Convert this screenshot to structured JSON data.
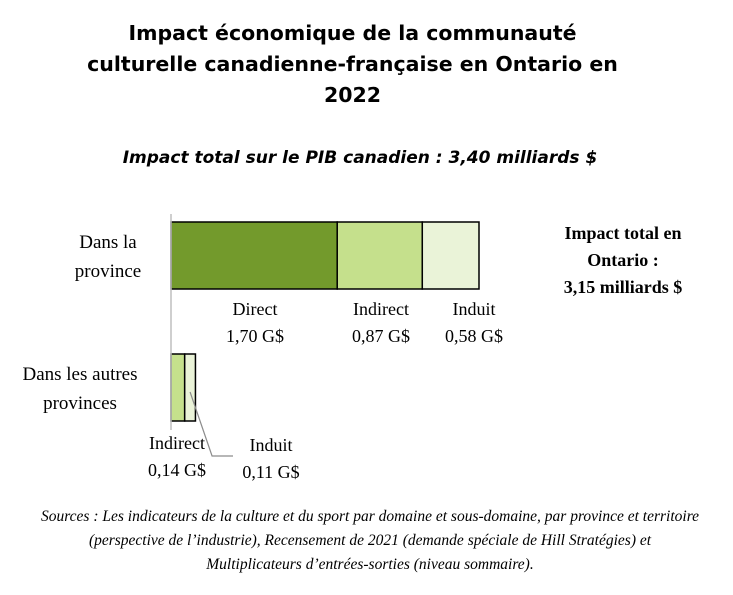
{
  "title": "Impact économique de la communauté culturelle canadienne-française en Ontario en 2022",
  "subtitle": "Impact total sur le PIB canadien : 3,40 milliards $",
  "total_box": {
    "line1": "Impact total en",
    "line2": "Ontario :",
    "line3": "3,15 milliards $"
  },
  "source": "Sources : Les indicateurs de la culture et du sport par domaine et sous-domaine, par province et territoire (perspective de l’industrie), Recensement de 2021 (demande spéciale de Hill Stratégies) et Multiplicateurs d’entrées-sorties (niveau sommaire).",
  "colors": {
    "direct": "#739a2c",
    "indirect": "#c5e08c",
    "induit": "#eaf3d8",
    "outline": "#000000",
    "axis": "#bfbfbf",
    "leader": "#8c8c8c"
  },
  "chart_data": {
    "type": "bar",
    "orientation": "horizontal",
    "stacked": true,
    "unit": "G$",
    "categories": [
      "Dans la province",
      "Dans les autres provinces"
    ],
    "category_lines": [
      [
        "Dans la",
        "province"
      ],
      [
        "Dans les autres",
        "provinces"
      ]
    ],
    "series": [
      {
        "name": "Direct",
        "values": [
          1.7,
          0
        ],
        "labels": [
          "1,70 G$",
          ""
        ],
        "color": "#739a2c"
      },
      {
        "name": "Indirect",
        "values": [
          0.87,
          0.14
        ],
        "labels": [
          "0,87 G$",
          "0,14 G$"
        ],
        "color": "#c5e08c"
      },
      {
        "name": "Induit",
        "values": [
          0.58,
          0.11
        ],
        "labels": [
          "0,58 G$",
          "0,11 G$"
        ],
        "color": "#eaf3d8"
      }
    ],
    "xlim": [
      0,
      3.15
    ],
    "grid": false,
    "legend": "none"
  }
}
